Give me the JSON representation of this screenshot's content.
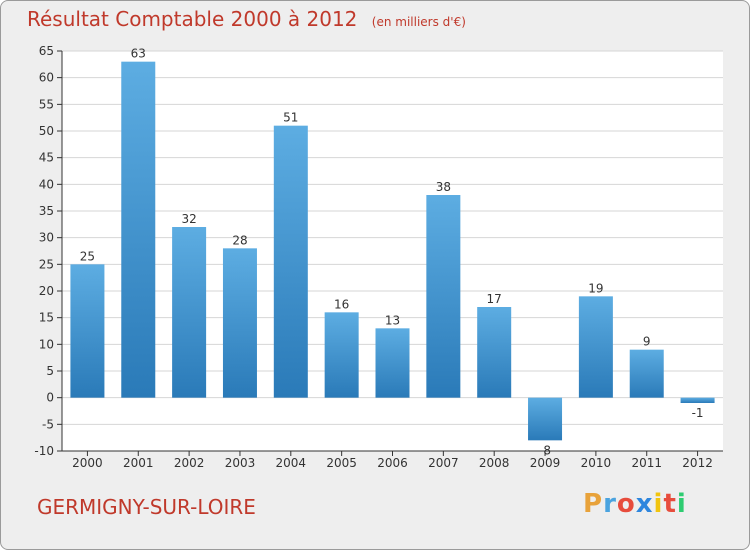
{
  "header": {
    "title": "Résultat Comptable 2000 à 2012",
    "unit": "(en milliers d'€)"
  },
  "footer": {
    "town": "GERMIGNY-SUR-LOIRE",
    "logo_letters": [
      "P",
      "r",
      "o",
      "x",
      "i",
      "t",
      "i"
    ],
    "logo_colors": [
      "#e8a23a",
      "#4aa3df",
      "#e74c3c",
      "#2e86de",
      "#f1c40f",
      "#e74c3c",
      "#2ecc71"
    ]
  },
  "colors": {
    "bar_light": "#5dade2",
    "bar_dark": "#2a7ab8",
    "title": "#c0392b",
    "grid": "#d6d6d6",
    "axis": "#333333"
  },
  "chart_data": {
    "type": "bar",
    "title": "Résultat Comptable 2000 à 2012",
    "subtitle": "(en milliers d'€)",
    "categories": [
      "2000",
      "2001",
      "2002",
      "2003",
      "2004",
      "2005",
      "2006",
      "2007",
      "2008",
      "2009",
      "2010",
      "2011",
      "2012"
    ],
    "values": [
      25,
      63,
      32,
      28,
      51,
      16,
      13,
      38,
      17,
      -8,
      19,
      9,
      -1
    ],
    "data_labels": [
      "25",
      "63",
      "32",
      "28",
      "51",
      "16",
      "13",
      "38",
      "17",
      "-8",
      "19",
      "9",
      "-1"
    ],
    "ylim": [
      -10,
      65
    ],
    "yticks": [
      -10,
      -5,
      0,
      5,
      10,
      15,
      20,
      25,
      30,
      35,
      40,
      45,
      50,
      55,
      60,
      65
    ],
    "grid": true,
    "legend": "none"
  }
}
